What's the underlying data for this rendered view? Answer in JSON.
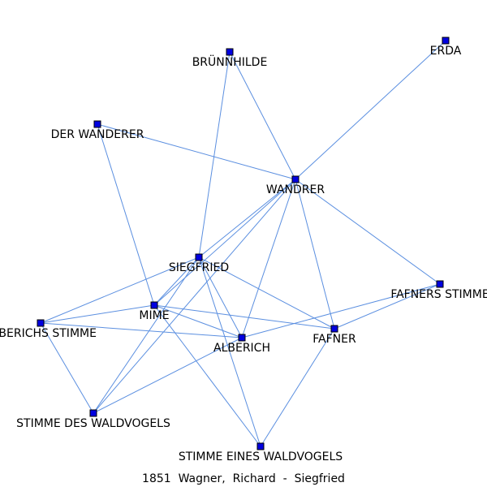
{
  "caption": "1851  Wagner,  Richard  -  Siegfried",
  "colors": {
    "edge": "#5b8fe0",
    "node_fill": "#0000e0",
    "node_stroke": "#000000"
  },
  "nodes": [
    {
      "id": "brunnhilde",
      "label": "BRÜNNHILDE"
    },
    {
      "id": "erda",
      "label": "ERDA"
    },
    {
      "id": "wanderer_alt",
      "label": "DER WANDERER"
    },
    {
      "id": "wandrer",
      "label": "WANDRER"
    },
    {
      "id": "siegfried",
      "label": "SIEGFRIED"
    },
    {
      "id": "fafners_stimme",
      "label": "FAFNERS STIMME"
    },
    {
      "id": "mime",
      "label": "MIME"
    },
    {
      "id": "alberichs_stimme",
      "label": "ALBERICHS STIMME"
    },
    {
      "id": "alberich",
      "label": "ALBERICH"
    },
    {
      "id": "fafner",
      "label": "FAFNER"
    },
    {
      "id": "waldvogels",
      "label": "STIMME DES WALDVOGELS"
    },
    {
      "id": "eines_waldvogels",
      "label": "STIMME EINES WALDVOGELS"
    }
  ],
  "edges": [
    {
      "source": "brunnhilde",
      "target": "siegfried",
      "weight": 1
    },
    {
      "source": "brunnhilde",
      "target": "wandrer",
      "weight": 1
    },
    {
      "source": "erda",
      "target": "wandrer",
      "weight": 1
    },
    {
      "source": "wanderer_alt",
      "target": "wandrer",
      "weight": 1
    },
    {
      "source": "wanderer_alt",
      "target": "mime",
      "weight": 1
    },
    {
      "source": "wandrer",
      "target": "siegfried",
      "weight": 1
    },
    {
      "source": "wandrer",
      "target": "mime",
      "weight": 1
    },
    {
      "source": "wandrer",
      "target": "alberich",
      "weight": 1
    },
    {
      "source": "wandrer",
      "target": "fafner",
      "weight": 1
    },
    {
      "source": "wandrer",
      "target": "fafners_stimme",
      "weight": 1
    },
    {
      "source": "wandrer",
      "target": "waldvogels",
      "weight": 1
    },
    {
      "source": "siegfried",
      "target": "mime",
      "weight": 3
    },
    {
      "source": "siegfried",
      "target": "alberichs_stimme",
      "weight": 1
    },
    {
      "source": "siegfried",
      "target": "alberich",
      "weight": 1
    },
    {
      "source": "siegfried",
      "target": "fafner",
      "weight": 1
    },
    {
      "source": "siegfried",
      "target": "waldvogels",
      "weight": 1
    },
    {
      "source": "siegfried",
      "target": "eines_waldvogels",
      "weight": 1
    },
    {
      "source": "mime",
      "target": "alberichs_stimme",
      "weight": 1
    },
    {
      "source": "mime",
      "target": "alberich",
      "weight": 1
    },
    {
      "source": "mime",
      "target": "fafner",
      "weight": 1
    },
    {
      "source": "mime",
      "target": "eines_waldvogels",
      "weight": 1
    },
    {
      "source": "alberichs_stimme",
      "target": "alberich",
      "weight": 1
    },
    {
      "source": "alberichs_stimme",
      "target": "waldvogels",
      "weight": 1
    },
    {
      "source": "alberich",
      "target": "fafners_stimme",
      "weight": 1
    },
    {
      "source": "alberich",
      "target": "waldvogels",
      "weight": 1
    },
    {
      "source": "fafner",
      "target": "fafners_stimme",
      "weight": 1
    },
    {
      "source": "fafner",
      "target": "eines_waldvogels",
      "weight": 1
    }
  ]
}
